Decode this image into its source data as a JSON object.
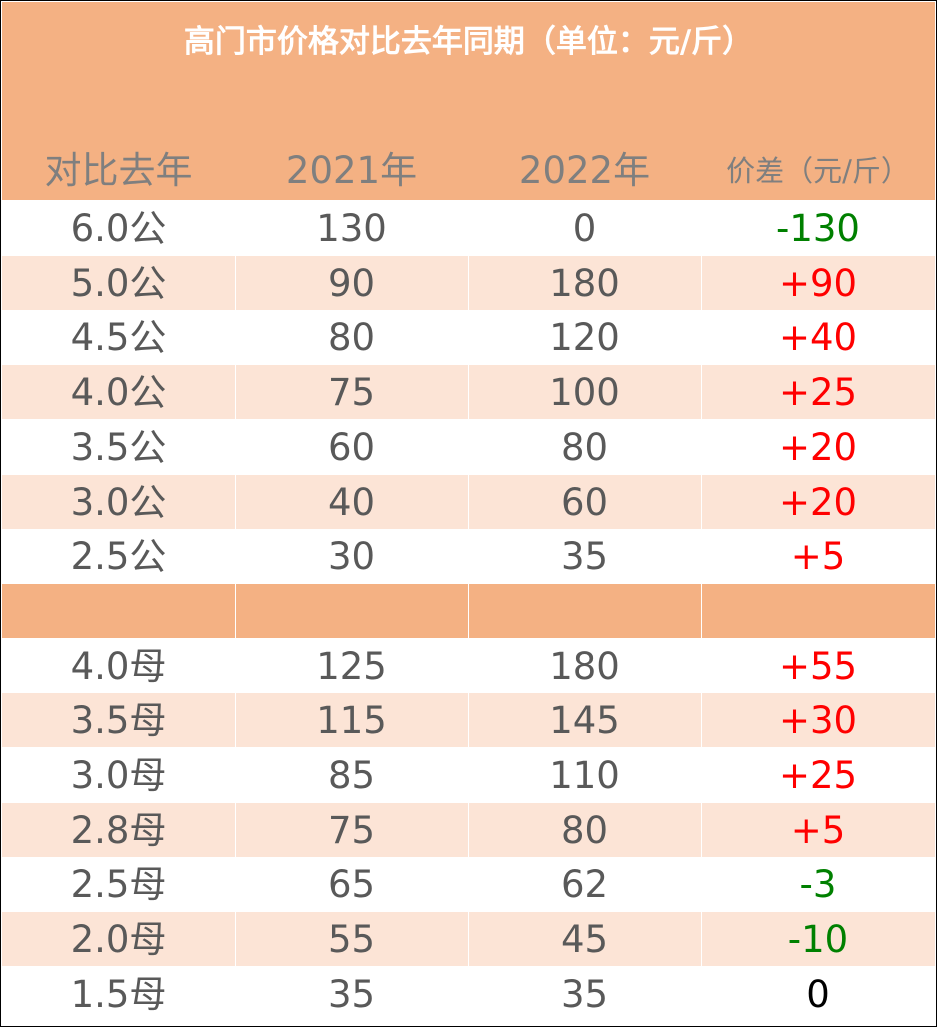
{
  "title": "高门市价格对比去年同期（单位：元/斤）",
  "headers": [
    "对比去年",
    "2021年",
    "2022年",
    "价差（元/斤）"
  ],
  "colors": {
    "header_band": "#F4B183",
    "alt_row": "#FCE4D6",
    "text": "#595959",
    "positive_diff": "#FF0000",
    "negative_diff": "#008000"
  },
  "rows": [
    {
      "spec": "6.0公",
      "y2021": "130",
      "y2022": "0",
      "diff": "-130",
      "sign": "neg"
    },
    {
      "spec": "5.0公",
      "y2021": "90",
      "y2022": "180",
      "diff": "+90",
      "sign": "pos"
    },
    {
      "spec": "4.5公",
      "y2021": "80",
      "y2022": "120",
      "diff": "+40",
      "sign": "pos"
    },
    {
      "spec": "4.0公",
      "y2021": "75",
      "y2022": "100",
      "diff": "+25",
      "sign": "pos"
    },
    {
      "spec": "3.5公",
      "y2021": "60",
      "y2022": "80",
      "diff": "+20",
      "sign": "pos"
    },
    {
      "spec": "3.0公",
      "y2021": "40",
      "y2022": "60",
      "diff": "+20",
      "sign": "pos"
    },
    {
      "spec": "2.5公",
      "y2021": "30",
      "y2022": "35",
      "diff": "+5",
      "sign": "pos"
    },
    {
      "spec": "",
      "y2021": "",
      "y2022": "",
      "diff": "",
      "sign": "band"
    },
    {
      "spec": "4.0母",
      "y2021": "125",
      "y2022": "180",
      "diff": "+55",
      "sign": "pos"
    },
    {
      "spec": "3.5母",
      "y2021": "115",
      "y2022": "145",
      "diff": "+30",
      "sign": "pos"
    },
    {
      "spec": "3.0母",
      "y2021": "85",
      "y2022": "110",
      "diff": "+25",
      "sign": "pos"
    },
    {
      "spec": "2.8母",
      "y2021": "75",
      "y2022": "80",
      "diff": "+5",
      "sign": "pos"
    },
    {
      "spec": "2.5母",
      "y2021": "65",
      "y2022": "62",
      "diff": "-3",
      "sign": "neg"
    },
    {
      "spec": "2.0母",
      "y2021": "55",
      "y2022": "45",
      "diff": "-10",
      "sign": "neg"
    },
    {
      "spec": "1.5母",
      "y2021": "35",
      "y2022": "35",
      "diff": "0",
      "sign": "zero"
    }
  ]
}
